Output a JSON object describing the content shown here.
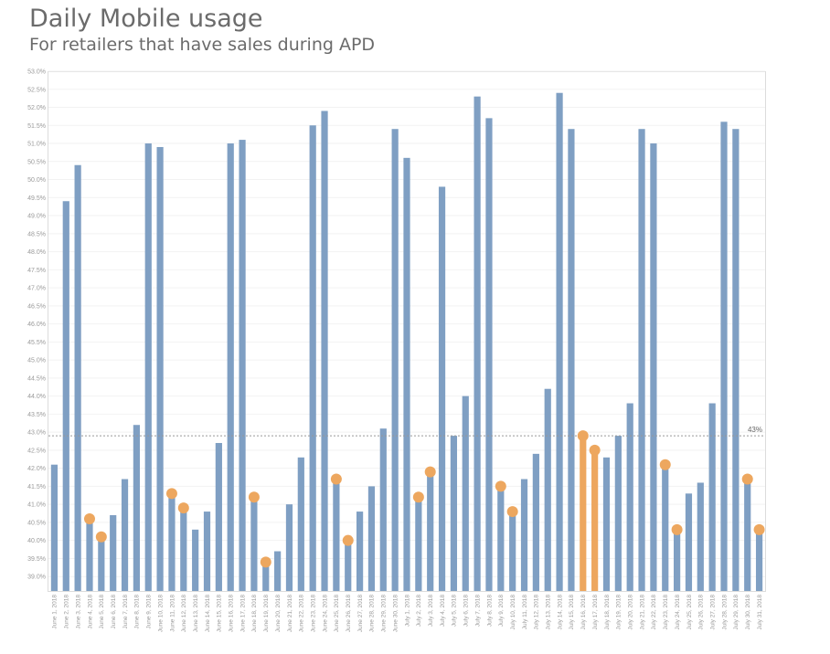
{
  "header": {
    "title": "Daily Mobile usage",
    "subtitle": "For retailers that have sales during APD"
  },
  "colors": {
    "bar": "#7f9fc3",
    "highlight": "#eda75f",
    "reference_line": "#999999"
  },
  "chart_data": {
    "type": "bar",
    "title": "Daily Mobile usage",
    "subtitle": "For retailers that have sales during APD",
    "xlabel": "",
    "ylabel": "",
    "ylim": [
      38.6,
      53.0
    ],
    "ytick_step": 0.5,
    "ytick_format": "percent_1dp",
    "grid": true,
    "reference_line": {
      "value": 42.9,
      "label": "43%"
    },
    "highlighted_categories": [
      "July 16, 2018",
      "July 17, 2018"
    ],
    "marker_categories": [
      "June 4, 2018",
      "June 5, 2018",
      "June 11, 2018",
      "June 12, 2018",
      "June 18, 2018",
      "June 19, 2018",
      "June 25, 2018",
      "June 26, 2018",
      "July 2, 2018",
      "July 3, 2018",
      "July 9, 2018",
      "July 10, 2018",
      "July 16, 2018",
      "July 17, 2018",
      "July 23, 2018",
      "July 24, 2018",
      "July 30, 2018",
      "July 31, 2018"
    ],
    "categories": [
      "June 1, 2018",
      "June 2, 2018",
      "June 3, 2018",
      "June 4, 2018",
      "June 5, 2018",
      "June 6, 2018",
      "June 7, 2018",
      "June 8, 2018",
      "June 9, 2018",
      "June 10, 2018",
      "June 11, 2018",
      "June 12, 2018",
      "June 13, 2018",
      "June 14, 2018",
      "June 15, 2018",
      "June 16, 2018",
      "June 17, 2018",
      "June 18, 2018",
      "June 19, 2018",
      "June 20, 2018",
      "June 21, 2018",
      "June 22, 2018",
      "June 23, 2018",
      "June 24, 2018",
      "June 25, 2018",
      "June 26, 2018",
      "June 27, 2018",
      "June 28, 2018",
      "June 29, 2018",
      "June 30, 2018",
      "July 1, 2018",
      "July 2, 2018",
      "July 3, 2018",
      "July 4, 2018",
      "July 5, 2018",
      "July 6, 2018",
      "July 7, 2018",
      "July 8, 2018",
      "July 9, 2018",
      "July 10, 2018",
      "July 11, 2018",
      "July 12, 2018",
      "July 13, 2018",
      "July 14, 2018",
      "July 15, 2018",
      "July 16, 2018",
      "July 17, 2018",
      "July 18, 2018",
      "July 19, 2018",
      "July 20, 2018",
      "July 21, 2018",
      "July 22, 2018",
      "July 23, 2018",
      "July 24, 2018",
      "July 25, 2018",
      "July 26, 2018",
      "July 27, 2018",
      "July 28, 2018",
      "July 29, 2018",
      "July 30, 2018",
      "July 31, 2018"
    ],
    "values": [
      42.1,
      49.4,
      50.4,
      40.6,
      40.1,
      40.7,
      41.7,
      43.2,
      51.0,
      50.9,
      41.3,
      40.9,
      40.3,
      40.8,
      42.7,
      51.0,
      51.1,
      41.2,
      39.4,
      39.7,
      41.0,
      42.3,
      51.5,
      51.9,
      41.7,
      40.0,
      40.8,
      41.5,
      43.1,
      51.4,
      50.6,
      41.2,
      41.9,
      49.8,
      42.9,
      44.0,
      52.3,
      51.7,
      41.5,
      40.8,
      41.7,
      42.4,
      44.2,
      52.4,
      51.4,
      42.9,
      42.5,
      42.3,
      42.9,
      43.8,
      51.4,
      51.0,
      42.1,
      40.3,
      41.3,
      41.6,
      43.8,
      51.6,
      51.4,
      41.7,
      40.3
    ]
  }
}
